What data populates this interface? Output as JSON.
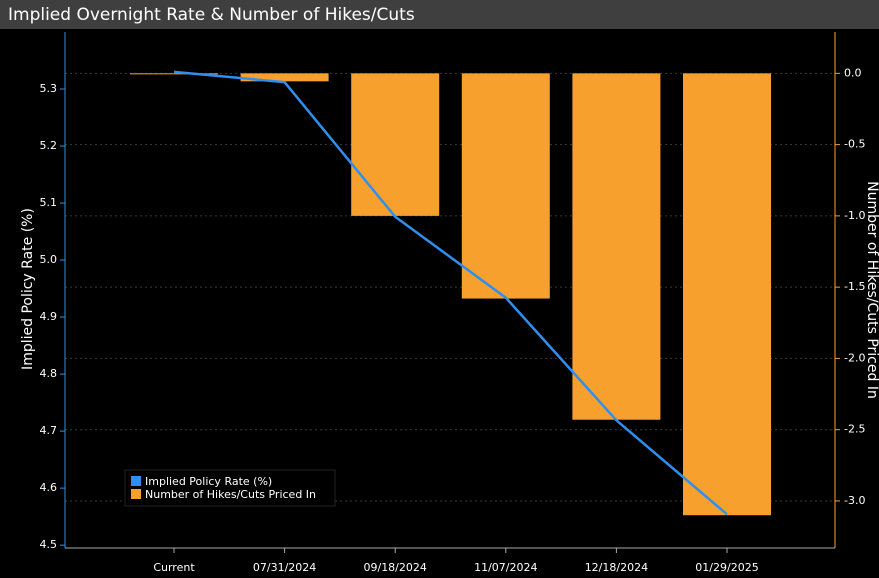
{
  "chart_data": {
    "type": "combo",
    "title": "Implied Overnight Rate & Number of Hikes/Cuts",
    "ylabel": "Implied Policy Rate (%)",
    "y2label": "Number of Hikes/Cuts Priced In",
    "categories": [
      "Current",
      "07/31/2024",
      "09/18/2024",
      "11/07/2024",
      "12/18/2024",
      "01/29/2025"
    ],
    "series": [
      {
        "name": "Implied Policy Rate (%)",
        "type": "line",
        "color": "#2e8ff0",
        "values": [
          5.33,
          5.312,
          5.076,
          4.934,
          4.719,
          4.554
        ]
      },
      {
        "name": "Number of Hikes/Cuts Priced In",
        "type": "bar",
        "axis": "y2",
        "color": "#f8a02e",
        "values": [
          0,
          -0.056,
          -1.0,
          -1.58,
          -2.43,
          -3.1
        ]
      }
    ],
    "ylim": [
      4.495,
      5.4
    ],
    "yticks": [
      4.5,
      4.6,
      4.7,
      4.8,
      4.9,
      {
        "value": 5.0,
        "label": "5.0"
      },
      5.1,
      5.2,
      5.3
    ],
    "y2lim": [
      -3.33,
      0.29
    ],
    "y2ticks": [
      {
        "value": -3.0,
        "label": "-3.0"
      },
      -2.5,
      {
        "value": -2.0,
        "label": "-2.0"
      },
      -1.5,
      {
        "value": -1.0,
        "label": "-1.0"
      },
      -0.5,
      {
        "value": 0.0,
        "label": "0.0"
      }
    ],
    "grid": true,
    "legend": "lower left"
  }
}
